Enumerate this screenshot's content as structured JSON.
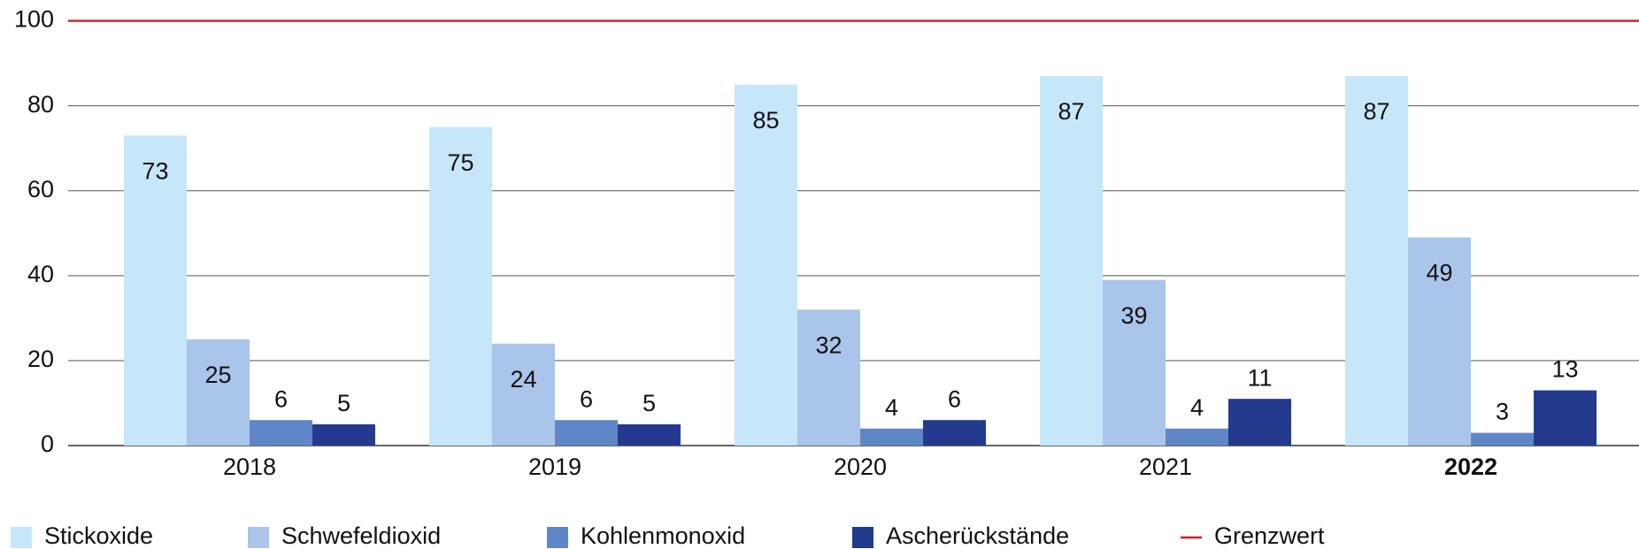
{
  "chart_data": {
    "type": "bar",
    "categories": [
      "2018",
      "2019",
      "2020",
      "2021",
      "2022"
    ],
    "highlight_category_index": 4,
    "series": [
      {
        "name": "Stickoxide",
        "color": "#c6e7f9",
        "values": [
          73,
          75,
          85,
          87,
          87
        ]
      },
      {
        "name": "Schwefeldioxid",
        "color": "#a9c5e9",
        "values": [
          25,
          24,
          32,
          39,
          49
        ]
      },
      {
        "name": "Kohlenmonoxid",
        "color": "#5f87c7",
        "values": [
          6,
          6,
          4,
          4,
          3
        ]
      },
      {
        "name": "Ascherückstände",
        "color": "#233a8e",
        "values": [
          5,
          5,
          6,
          11,
          13
        ]
      }
    ],
    "limit": {
      "name": "Grenzwert",
      "value": 100,
      "color": "#c8202a"
    },
    "ylim": [
      0,
      100
    ],
    "yticks": [
      0,
      20,
      40,
      60,
      80,
      100
    ],
    "grid": true,
    "legend": "bottom"
  }
}
